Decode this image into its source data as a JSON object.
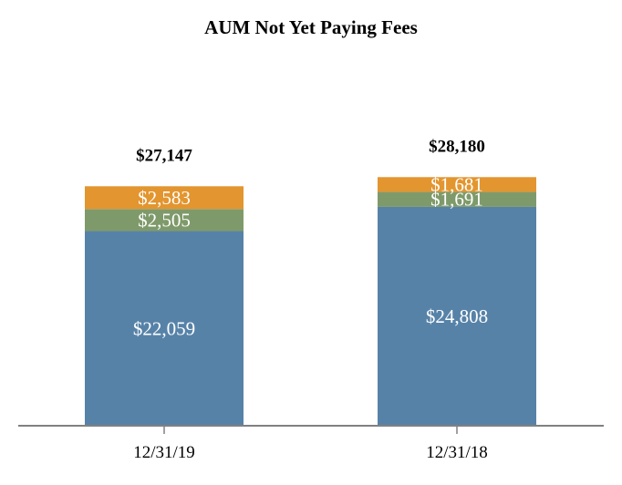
{
  "chart_data": {
    "type": "bar",
    "stacked": true,
    "title": "AUM Not Yet Paying Fees",
    "xlabel": "",
    "ylabel": "",
    "categories": [
      "12/31/19",
      "12/31/18"
    ],
    "series": [
      {
        "values": [
          22059,
          24808
        ],
        "labels": [
          "$22,059",
          "$24,808"
        ],
        "color": "#5782a8"
      },
      {
        "values": [
          2505,
          1691
        ],
        "labels": [
          "$2,505",
          "$1,691"
        ],
        "color": "#7f9a6a"
      },
      {
        "values": [
          2583,
          1681
        ],
        "labels": [
          "$2,583",
          "$1,681"
        ],
        "color": "#e3952f"
      }
    ],
    "totals": [
      27147,
      28180
    ],
    "total_labels": [
      "$27,147",
      "$28,180"
    ],
    "ylim": [
      0,
      31000
    ],
    "grid": false,
    "legend": "none"
  }
}
